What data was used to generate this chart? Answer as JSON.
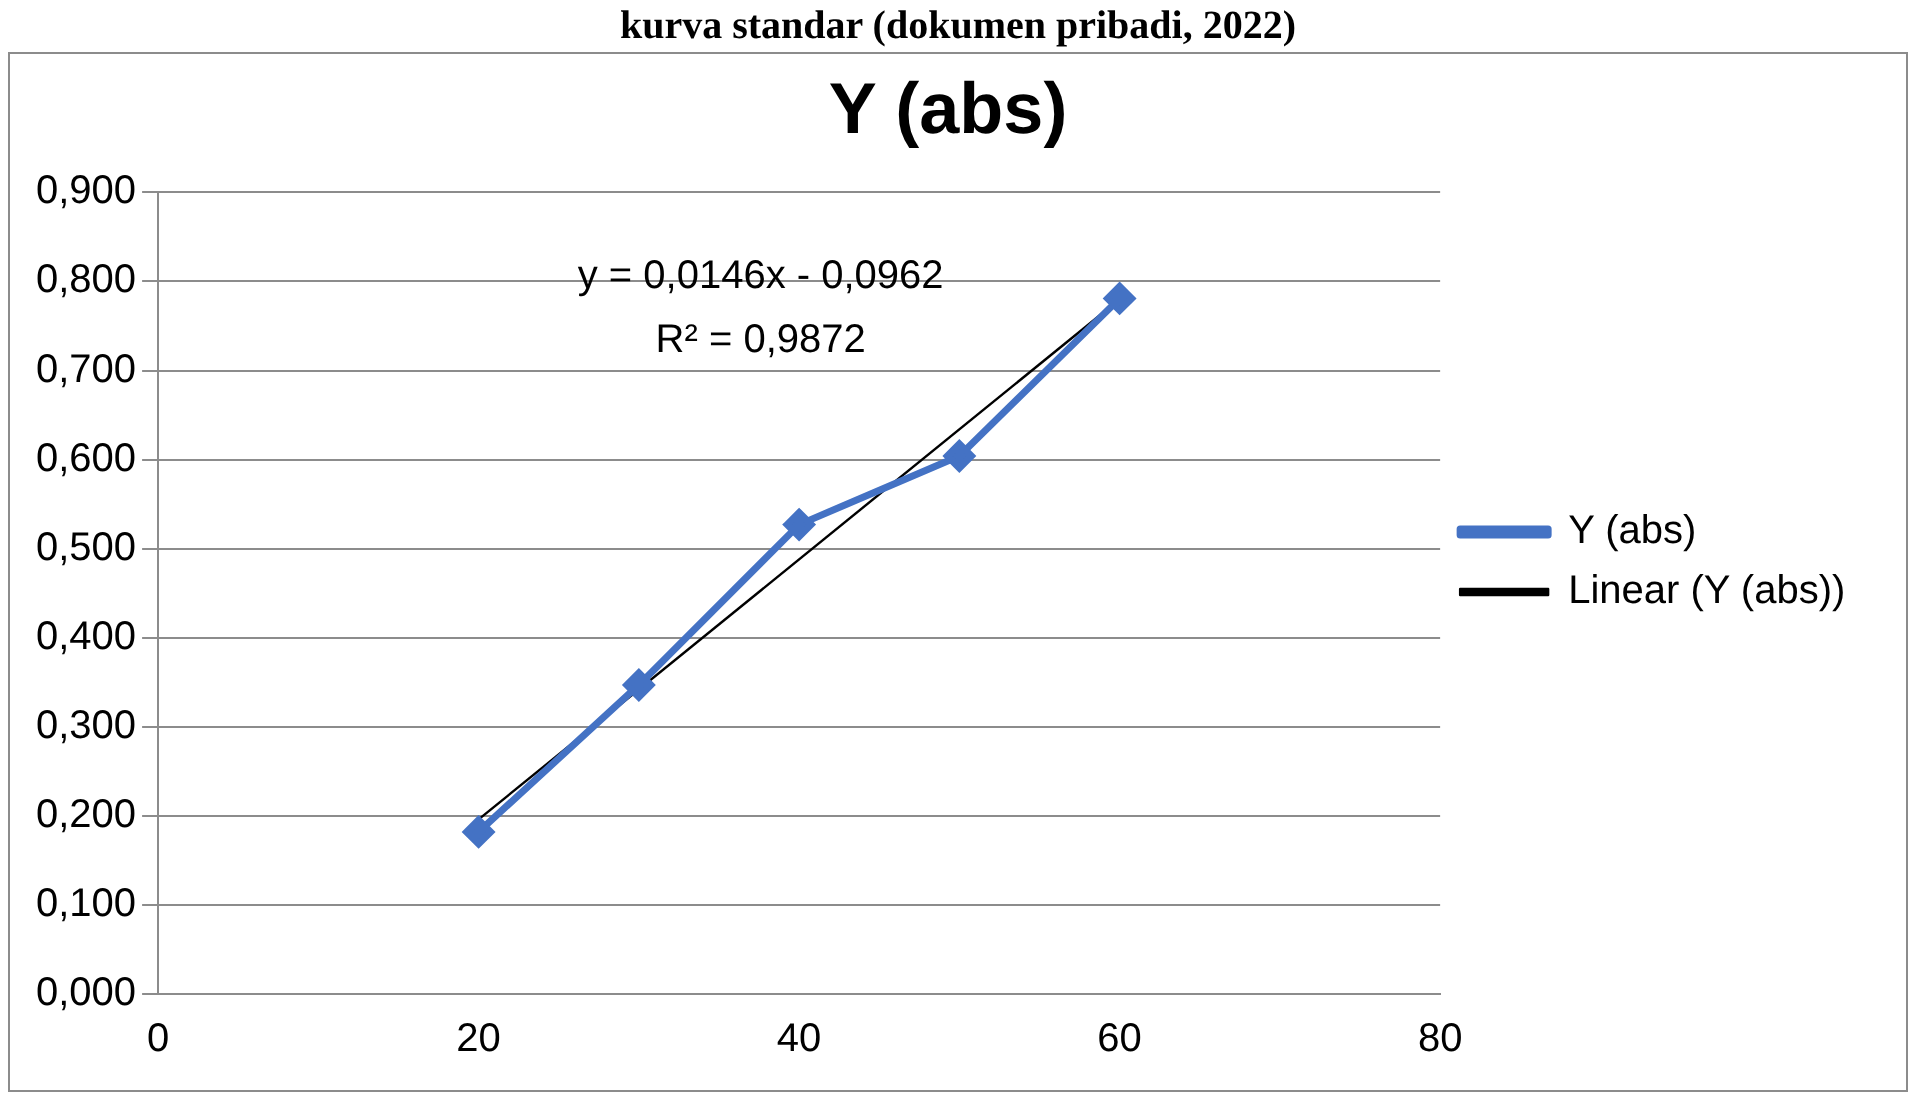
{
  "chart_data": {
    "type": "line",
    "title": "Y (abs)",
    "annotations": [
      "kurva standar (dokumen pribadi, 2022)",
      "y = 0,0146x - 0,0962",
      "R² = 0,9872"
    ],
    "x": [
      20,
      30,
      40,
      50,
      60
    ],
    "series": [
      {
        "name": "Y (abs)",
        "color": "#4472c4",
        "values": [
          0.182,
          0.347,
          0.527,
          0.604,
          0.781
        ],
        "marker": "diamond"
      },
      {
        "name": "Linear (Y (abs))",
        "color": "#000000",
        "x": [
          20,
          60
        ],
        "values": [
          0.196,
          0.78
        ],
        "marker": "none"
      }
    ],
    "xlim": [
      0,
      80
    ],
    "xticks": [
      0,
      20,
      40,
      60,
      80
    ],
    "ylim": [
      0,
      0.9
    ],
    "yticks": [
      {
        "value": 0,
        "label": "0,000"
      },
      {
        "value": 0.1,
        "label": "0,100"
      },
      {
        "value": 0.2,
        "label": "0,200"
      },
      {
        "value": 0.3,
        "label": "0,300"
      },
      {
        "value": 0.4,
        "label": "0,400"
      },
      {
        "value": 0.5,
        "label": "0,500"
      },
      {
        "value": 0.6,
        "label": "0,600"
      },
      {
        "value": 0.7,
        "label": "0,700"
      },
      {
        "value": 0.8,
        "label": "0,800"
      },
      {
        "value": 0.9,
        "label": "0,900"
      }
    ],
    "grid": "y",
    "legend": "right",
    "line_style": "solid"
  }
}
